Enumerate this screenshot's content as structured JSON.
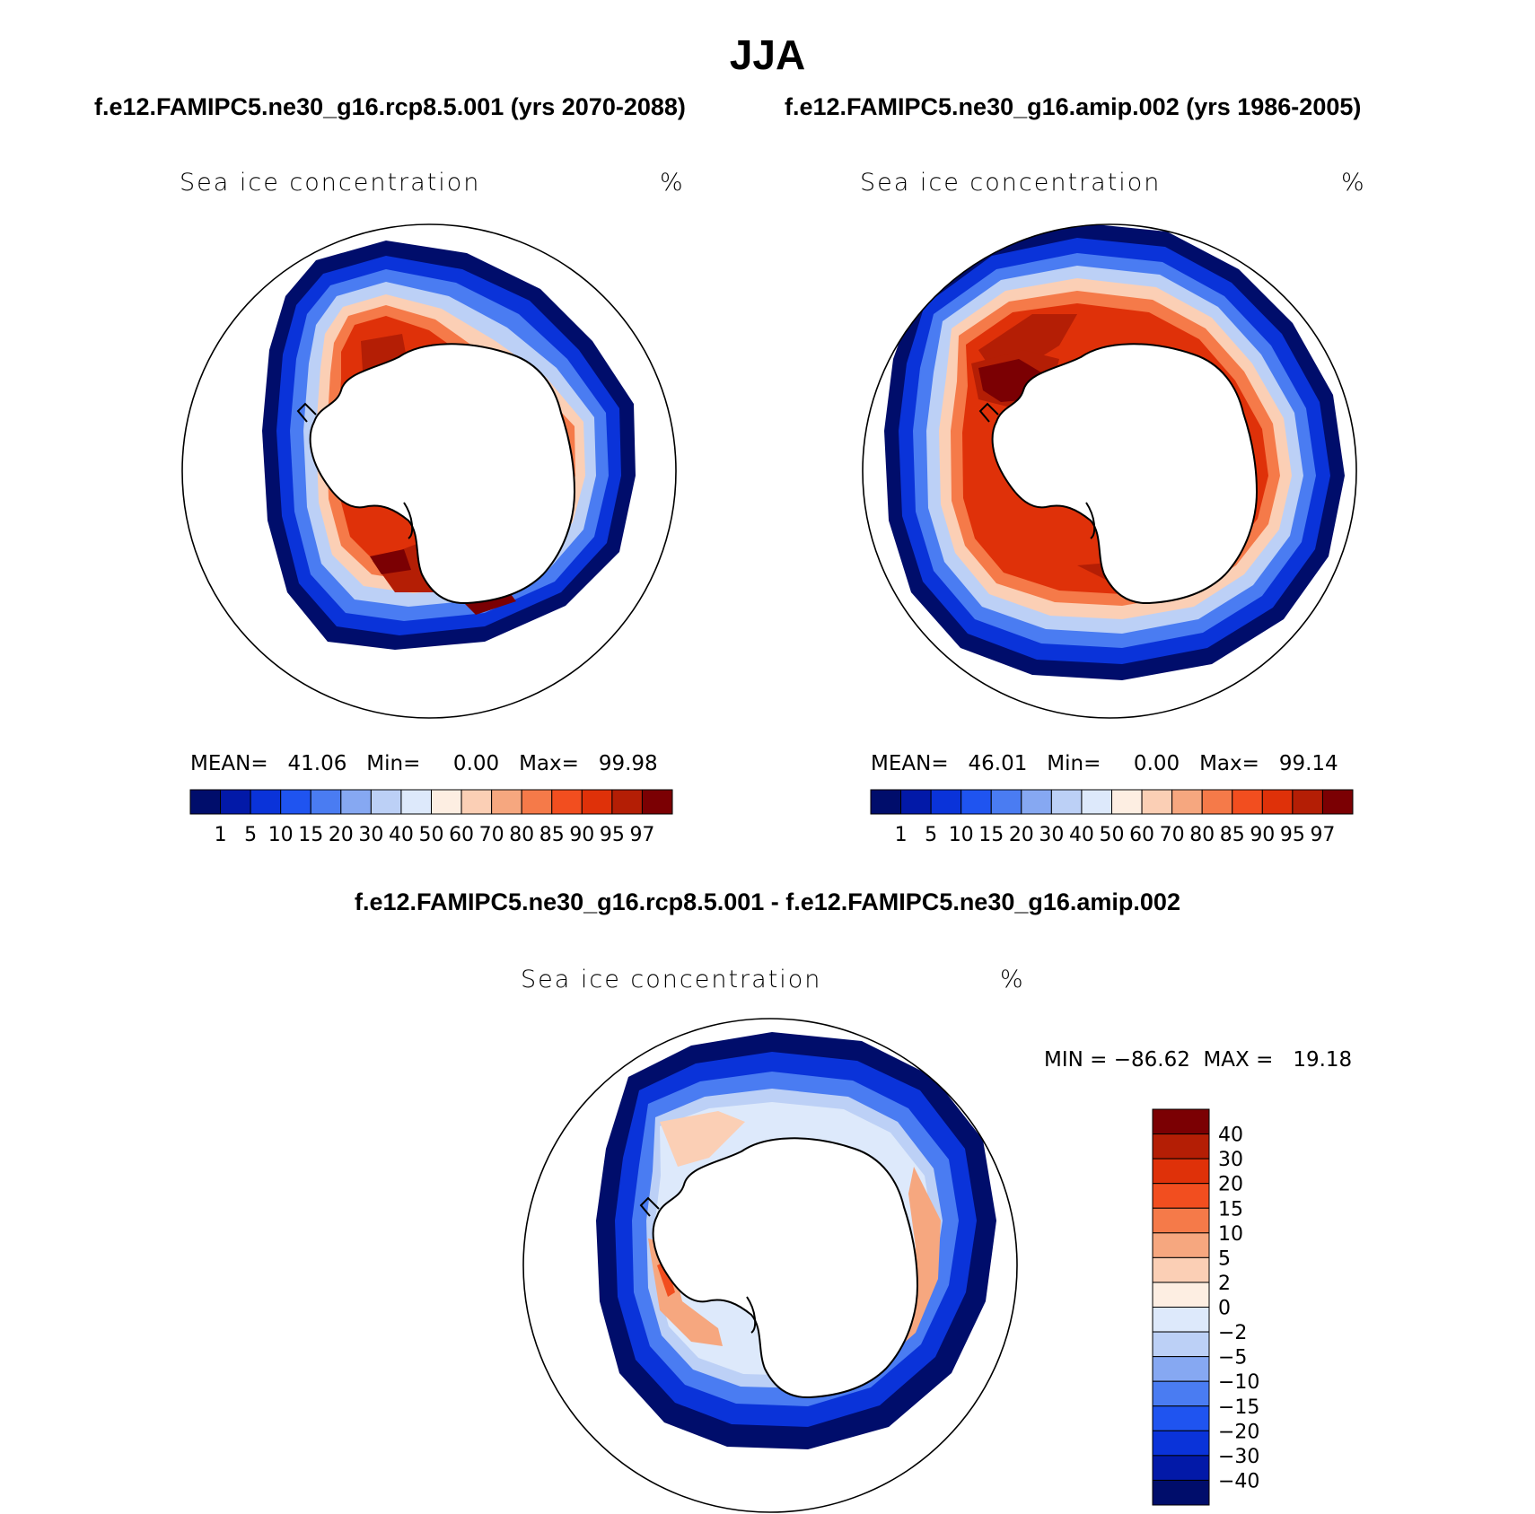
{
  "figure": {
    "title": "JJA",
    "case1_title": "f.e12.FAMIPC5.ne30_g16.rcp8.5.001 (yrs 2070-2088)",
    "case2_title": "f.e12.FAMIPC5.ne30_g16.amip.002 (yrs 1986-2005)",
    "diff_title": "f.e12.FAMIPC5.ne30_g16.rcp8.5.001 - f.e12.FAMIPC5.ne30_g16.amip.002"
  },
  "panels": [
    {
      "variable": "Sea ice concentration",
      "units": "%",
      "stats": "MEAN=   41.06   Min=     0.00   Max=   99.98"
    },
    {
      "variable": "Sea ice concentration",
      "units": "%",
      "stats": "MEAN=   46.01   Min=     0.00   Max=   99.14"
    },
    {
      "variable": "Sea ice concentration",
      "units": "%",
      "stats": "MIN = −86.62  MAX =   19.18"
    }
  ],
  "colorbar_abs": {
    "labels": [
      "1",
      "5",
      "10",
      "15",
      "20",
      "30",
      "40",
      "50",
      "60",
      "70",
      "80",
      "85",
      "90",
      "95",
      "97"
    ],
    "colors": [
      "#000d6b",
      "#0219a8",
      "#0a33d9",
      "#1f54f0",
      "#4a7cf2",
      "#86a8f2",
      "#bcd0f6",
      "#dde9fb",
      "#fdeee2",
      "#fbcfb5",
      "#f6a77f",
      "#f57a49",
      "#f24e1f",
      "#df3109",
      "#b41e05",
      "#7b0003"
    ]
  },
  "colorbar_diff": {
    "labels": [
      "40",
      "30",
      "20",
      "15",
      "10",
      "5",
      "2",
      "0",
      "−2",
      "−5",
      "−10",
      "−15",
      "−20",
      "−30",
      "−40"
    ],
    "colors": [
      "#7b0003",
      "#b41e05",
      "#df3109",
      "#f24e1f",
      "#f57a49",
      "#f6a77f",
      "#fbcfb5",
      "#fdeee2",
      "#dde9fb",
      "#bcd0f6",
      "#86a8f2",
      "#4a7cf2",
      "#1f54f0",
      "#0a33d9",
      "#0219a8",
      "#000d6b"
    ]
  }
}
